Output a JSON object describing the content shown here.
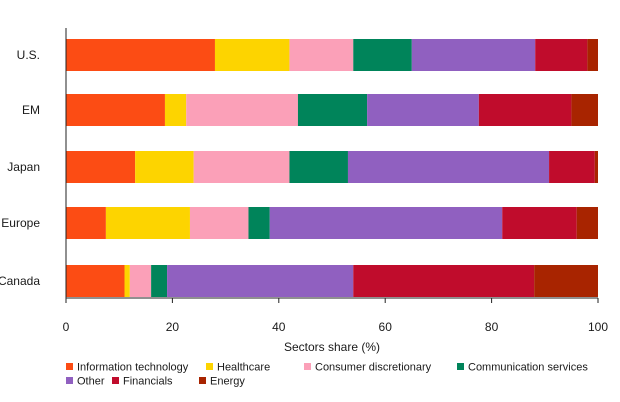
{
  "colors": {
    "Information technology": "#fc4c14",
    "Healthcare": "#fdd400",
    "Consumer discretionary": "#fba0b8",
    "Communication services": "#00845a",
    "Other": "#9060c0",
    "Financials": "#c00c2c",
    "Energy": "#a82400"
  },
  "chart_data": {
    "type": "bar",
    "orientation": "horizontal",
    "stacked": true,
    "categories": [
      "U.S.",
      "EM",
      "Japan",
      "Europe",
      "Canada"
    ],
    "series": [
      {
        "name": "Information technology",
        "values": [
          28,
          18.6,
          13,
          7.5,
          11
        ]
      },
      {
        "name": "Healthcare",
        "values": [
          14,
          4,
          11,
          15.8,
          1
        ]
      },
      {
        "name": "Consumer discretionary",
        "values": [
          12,
          21,
          18,
          11,
          4
        ]
      },
      {
        "name": "Communication services",
        "values": [
          11,
          13,
          11,
          4,
          3
        ]
      },
      {
        "name": "Other",
        "values": [
          23.2,
          21,
          37.8,
          43.7,
          35
        ]
      },
      {
        "name": "Financials",
        "values": [
          9.8,
          17.4,
          8.6,
          14,
          34
        ]
      },
      {
        "name": "Energy",
        "values": [
          2,
          5,
          0.6,
          4,
          12
        ]
      }
    ],
    "xlabel": "Sectors share (%)",
    "ylabel": "",
    "xlim": [
      0,
      100
    ],
    "xticks": [
      "0",
      "20",
      "40",
      "60",
      "80",
      "100"
    ],
    "grid": false,
    "legend_position": "bottom"
  }
}
